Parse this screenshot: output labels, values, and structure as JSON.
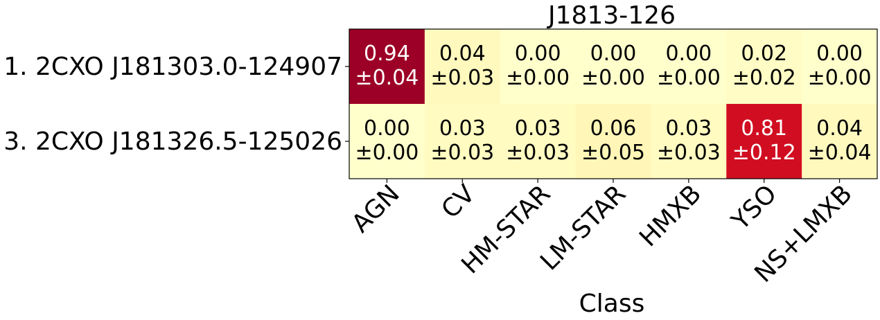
{
  "chart_data": {
    "type": "heatmap",
    "title": "J1813-126",
    "xlabel": "Class",
    "ylabel": "",
    "columns": [
      "AGN",
      "CV",
      "HM-STAR",
      "LM-STAR",
      "HMXB",
      "YSO",
      "NS+LMXB"
    ],
    "rows": [
      "1. 2CXO J181303.0-124907",
      "3. 2CXO J181326.5-125026"
    ],
    "values": [
      [
        0.94,
        0.04,
        0.0,
        0.0,
        0.0,
        0.02,
        0.0
      ],
      [
        0.0,
        0.03,
        0.03,
        0.06,
        0.03,
        0.81,
        0.04
      ]
    ],
    "errors": [
      [
        0.04,
        0.03,
        0.0,
        0.0,
        0.0,
        0.02,
        0.0
      ],
      [
        0.0,
        0.03,
        0.03,
        0.05,
        0.03,
        0.12,
        0.04
      ]
    ],
    "value_labels": [
      [
        "0.94",
        "0.04",
        "0.00",
        "0.00",
        "0.00",
        "0.02",
        "0.00"
      ],
      [
        "0.00",
        "0.03",
        "0.03",
        "0.06",
        "0.03",
        "0.81",
        "0.04"
      ]
    ],
    "error_labels": [
      [
        "±0.04",
        "±0.03",
        "±0.00",
        "±0.00",
        "±0.00",
        "±0.02",
        "±0.00"
      ],
      [
        "±0.00",
        "±0.03",
        "±0.03",
        "±0.05",
        "±0.03",
        "±0.12",
        "±0.04"
      ]
    ],
    "colormap": "YlOrRd",
    "vmin": 0,
    "vmax": 1,
    "grid": false,
    "colorbar": false
  }
}
